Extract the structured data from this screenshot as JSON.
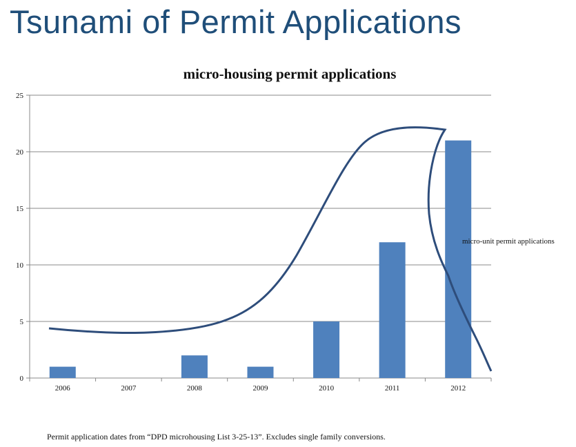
{
  "slide": {
    "title": "Tsunami of Permit Applications",
    "footnote": "Permit application dates from “DPD microhousing List 3-25-13”.  Excludes single family  conversions."
  },
  "chart_data": {
    "type": "bar",
    "title": "micro-housing permit applications",
    "xlabel": "",
    "ylabel": "",
    "categories": [
      "2006",
      "2007",
      "2008",
      "2009",
      "2010",
      "2011",
      "2012"
    ],
    "values": [
      1,
      0,
      2,
      1,
      5,
      12,
      21
    ],
    "ylim": [
      0,
      25
    ],
    "yticks": [
      0,
      5,
      10,
      15,
      20,
      25
    ],
    "grid": true,
    "annotation": "micro-unit permit applications",
    "bar_color": "#4f81bd",
    "trend_color": "#2e4d7b"
  }
}
